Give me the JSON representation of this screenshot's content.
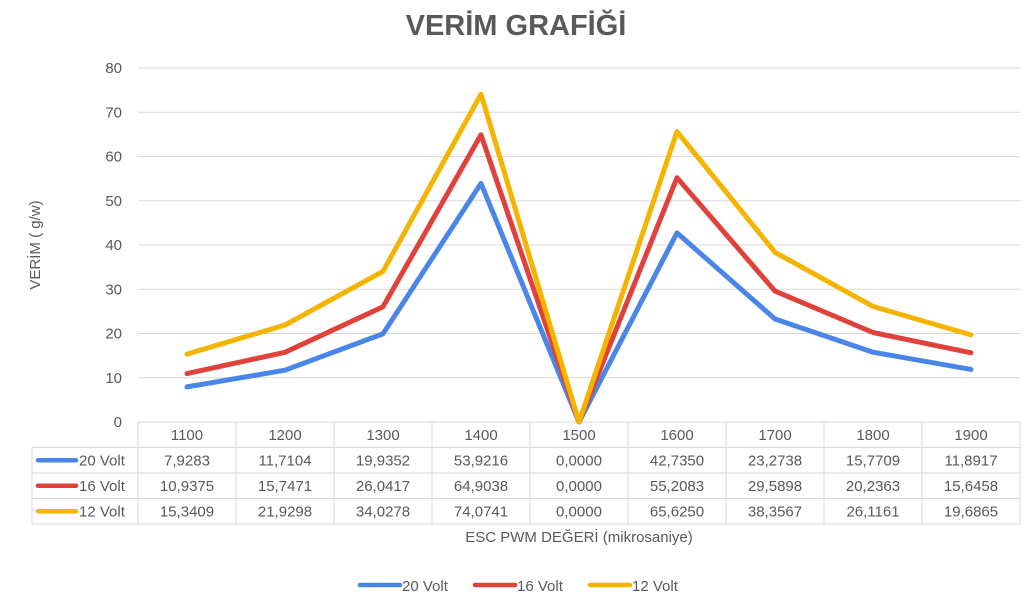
{
  "chart_data": {
    "type": "line",
    "title": "VERİM GRAFİĞİ",
    "xlabel": "ESC PWM DEĞERİ (mikrosaniye)",
    "ylabel": "VERİM ( g/w)",
    "categories": [
      "1100",
      "1200",
      "1300",
      "1400",
      "1500",
      "1600",
      "1700",
      "1800",
      "1900"
    ],
    "ylim": [
      0,
      80
    ],
    "yticks": [
      0,
      10,
      20,
      30,
      40,
      50,
      60,
      70,
      80
    ],
    "grid": true,
    "legend_position": "bottom",
    "data_table": true,
    "series": [
      {
        "name": "20 Volt",
        "color": "#4a86e8",
        "values": [
          7.9283,
          11.7104,
          19.9352,
          53.9216,
          0.0,
          42.735,
          23.2738,
          15.7709,
          11.8917
        ],
        "labels": [
          "7,9283",
          "11,7104",
          "19,9352",
          "53,9216",
          "0,0000",
          "42,7350",
          "23,2738",
          "15,7709",
          "11,8917"
        ]
      },
      {
        "name": "16 Volt",
        "color": "#e0413a",
        "values": [
          10.9375,
          15.7471,
          26.0417,
          64.9038,
          0.0,
          55.2083,
          29.5898,
          20.2363,
          15.6458
        ],
        "labels": [
          "10,9375",
          "15,7471",
          "26,0417",
          "64,9038",
          "0,0000",
          "55,2083",
          "29,5898",
          "20,2363",
          "15,6458"
        ]
      },
      {
        "name": "12 Volt",
        "color": "#f4b400",
        "values": [
          15.3409,
          21.9298,
          34.0278,
          74.0741,
          0.0,
          65.625,
          38.3567,
          26.1161,
          19.6865
        ],
        "labels": [
          "15,3409",
          "21,9298",
          "34,0278",
          "74,0741",
          "0,0000",
          "65,6250",
          "38,3567",
          "26,1161",
          "19,6865"
        ]
      }
    ]
  }
}
